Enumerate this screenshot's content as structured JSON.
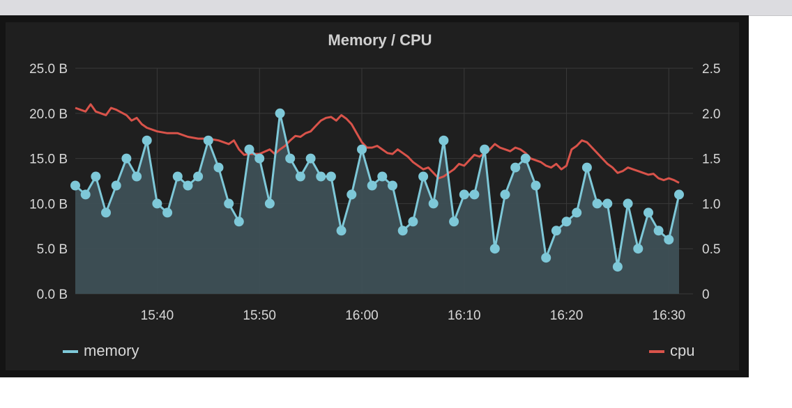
{
  "chart_data": {
    "type": "line",
    "title": "Memory / CPU",
    "x_ticks": [
      "15:40",
      "15:50",
      "16:00",
      "16:10",
      "16:20",
      "16:30"
    ],
    "x_tick_minutes": [
      940,
      950,
      960,
      970,
      980,
      990
    ],
    "x_range_minutes": [
      932,
      991
    ],
    "y_left_ticks": [
      "0.0 B",
      "5.0 B",
      "10.0 B",
      "15.0 B",
      "20.0 B",
      "25.0 B"
    ],
    "y_left_range": [
      0,
      25
    ],
    "y_right_ticks": [
      "0",
      "0.5",
      "1.0",
      "1.5",
      "2.0",
      "2.5"
    ],
    "y_right_range": [
      0,
      2.5
    ],
    "grid": true,
    "legend_placement": "bottom",
    "series": [
      {
        "name": "memory",
        "axis": "left",
        "color": "#7ec8d8",
        "fill": "#3e5056",
        "style": "line-with-points-and-area",
        "values": [
          12,
          11,
          13,
          9,
          12,
          15,
          13,
          17,
          10,
          9,
          13,
          12,
          13,
          17,
          14,
          10,
          8,
          16,
          15,
          10,
          20,
          15,
          13,
          15,
          13,
          13,
          7,
          11,
          16,
          12,
          13,
          12,
          7,
          8,
          13,
          10,
          17,
          8,
          11,
          11,
          16,
          5,
          11,
          14,
          15,
          12,
          4,
          7,
          8,
          9,
          14,
          10,
          10,
          3,
          10,
          5,
          9,
          7,
          6,
          11
        ]
      },
      {
        "name": "cpu",
        "axis": "right",
        "color": "#d9534a",
        "style": "line",
        "points": [
          [
            932,
            2.06
          ],
          [
            933,
            2.02
          ],
          [
            933.5,
            2.1
          ],
          [
            934,
            2.02
          ],
          [
            935,
            1.98
          ],
          [
            935.5,
            2.06
          ],
          [
            936,
            2.04
          ],
          [
            937,
            1.98
          ],
          [
            937.5,
            1.92
          ],
          [
            938,
            1.95
          ],
          [
            938.5,
            1.88
          ],
          [
            939,
            1.84
          ],
          [
            940,
            1.8
          ],
          [
            941,
            1.78
          ],
          [
            942,
            1.78
          ],
          [
            943,
            1.74
          ],
          [
            944,
            1.72
          ],
          [
            945,
            1.72
          ],
          [
            946,
            1.7
          ],
          [
            947,
            1.66
          ],
          [
            947.5,
            1.7
          ],
          [
            948,
            1.6
          ],
          [
            948.5,
            1.54
          ],
          [
            949,
            1.55
          ],
          [
            950,
            1.55
          ],
          [
            951,
            1.6
          ],
          [
            951.5,
            1.55
          ],
          [
            952,
            1.6
          ],
          [
            952.5,
            1.64
          ],
          [
            953,
            1.7
          ],
          [
            953.5,
            1.75
          ],
          [
            954,
            1.74
          ],
          [
            954.5,
            1.78
          ],
          [
            955,
            1.8
          ],
          [
            955.5,
            1.86
          ],
          [
            956,
            1.92
          ],
          [
            956.5,
            1.95
          ],
          [
            957,
            1.96
          ],
          [
            957.5,
            1.92
          ],
          [
            958,
            1.98
          ],
          [
            958.5,
            1.94
          ],
          [
            959,
            1.88
          ],
          [
            959.5,
            1.78
          ],
          [
            960,
            1.68
          ],
          [
            960.5,
            1.62
          ],
          [
            961,
            1.62
          ],
          [
            961.5,
            1.64
          ],
          [
            962,
            1.6
          ],
          [
            962.5,
            1.56
          ],
          [
            963,
            1.55
          ],
          [
            963.5,
            1.6
          ],
          [
            964,
            1.56
          ],
          [
            964.5,
            1.52
          ],
          [
            965,
            1.46
          ],
          [
            965.5,
            1.42
          ],
          [
            966,
            1.38
          ],
          [
            966.5,
            1.4
          ],
          [
            967,
            1.34
          ],
          [
            967.5,
            1.28
          ],
          [
            968,
            1.3
          ],
          [
            968.5,
            1.34
          ],
          [
            969,
            1.38
          ],
          [
            969.5,
            1.44
          ],
          [
            970,
            1.42
          ],
          [
            970.5,
            1.48
          ],
          [
            971,
            1.54
          ],
          [
            971.5,
            1.52
          ],
          [
            972,
            1.56
          ],
          [
            972.5,
            1.6
          ],
          [
            973,
            1.66
          ],
          [
            973.5,
            1.62
          ],
          [
            974,
            1.6
          ],
          [
            974.5,
            1.58
          ],
          [
            975,
            1.62
          ],
          [
            975.5,
            1.6
          ],
          [
            976,
            1.56
          ],
          [
            976.5,
            1.5
          ],
          [
            977,
            1.48
          ],
          [
            977.5,
            1.46
          ],
          [
            978,
            1.42
          ],
          [
            978.5,
            1.4
          ],
          [
            979,
            1.44
          ],
          [
            979.5,
            1.38
          ],
          [
            980,
            1.42
          ],
          [
            980.5,
            1.6
          ],
          [
            981,
            1.64
          ],
          [
            981.5,
            1.7
          ],
          [
            982,
            1.68
          ],
          [
            982.5,
            1.62
          ],
          [
            983,
            1.56
          ],
          [
            983.5,
            1.5
          ],
          [
            984,
            1.44
          ],
          [
            984.5,
            1.4
          ],
          [
            985,
            1.34
          ],
          [
            985.5,
            1.36
          ],
          [
            986,
            1.4
          ],
          [
            986.5,
            1.38
          ],
          [
            987,
            1.36
          ],
          [
            987.5,
            1.34
          ],
          [
            988,
            1.32
          ],
          [
            988.5,
            1.33
          ],
          [
            989,
            1.28
          ],
          [
            989.5,
            1.26
          ],
          [
            990,
            1.28
          ],
          [
            990.5,
            1.26
          ],
          [
            991,
            1.23
          ]
        ]
      }
    ]
  }
}
